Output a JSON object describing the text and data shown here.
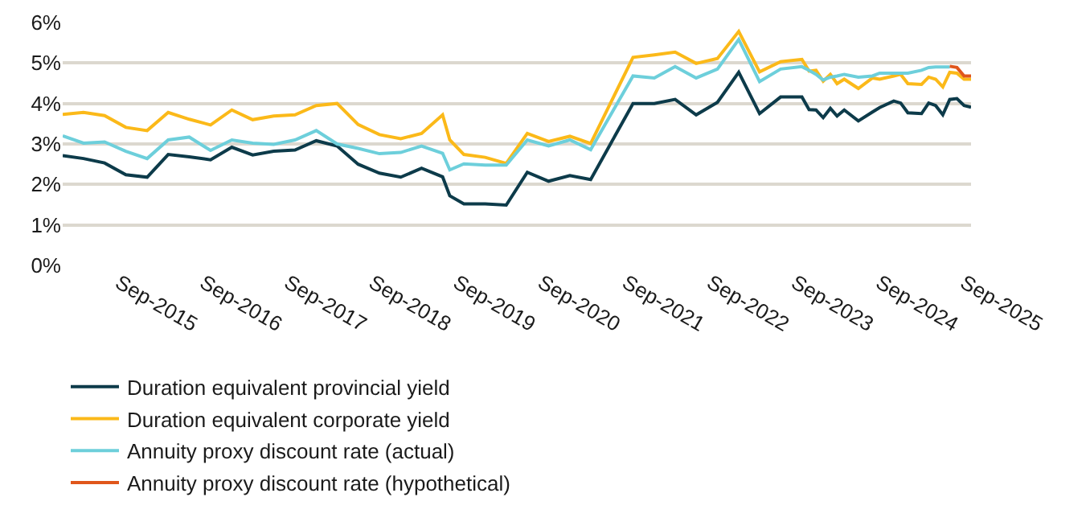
{
  "chart_data": {
    "type": "line",
    "x": [
      "2015-01",
      "2015-04",
      "2015-07",
      "2015-10",
      "2016-01",
      "2016-04",
      "2016-07",
      "2016-10",
      "2017-01",
      "2017-04",
      "2017-07",
      "2017-10",
      "2018-01",
      "2018-04",
      "2018-07",
      "2018-10",
      "2019-01",
      "2019-04",
      "2019-07",
      "2019-08",
      "2019-10",
      "2020-01",
      "2020-04",
      "2020-07",
      "2020-10",
      "2021-01",
      "2021-04",
      "2021-10",
      "2022-01",
      "2022-04",
      "2022-07",
      "2022-10",
      "2023-01",
      "2023-04",
      "2023-07",
      "2023-10",
      "2023-11",
      "2023-12",
      "2024-01",
      "2024-02",
      "2024-03",
      "2024-04",
      "2024-06",
      "2024-08",
      "2024-09",
      "2024-11",
      "2024-12",
      "2025-01",
      "2025-03",
      "2025-04",
      "2025-05",
      "2025-06",
      "2025-07",
      "2025-08",
      "2025-09",
      "2025-10"
    ],
    "series": [
      {
        "name": "Duration equivalent provincial yield",
        "color": "#0d3b4a",
        "values": [
          2.71,
          2.64,
          2.53,
          2.24,
          2.18,
          2.74,
          2.68,
          2.61,
          2.92,
          2.73,
          2.82,
          2.85,
          3.08,
          2.95,
          2.5,
          2.28,
          2.18,
          2.4,
          2.19,
          1.72,
          1.52,
          1.52,
          1.49,
          2.3,
          2.08,
          2.22,
          2.12,
          4.0,
          4.0,
          4.1,
          3.72,
          4.03,
          4.77,
          3.75,
          4.16,
          4.16,
          3.85,
          3.84,
          3.65,
          3.88,
          3.69,
          3.84,
          3.57,
          3.79,
          3.9,
          4.06,
          4.01,
          3.77,
          3.75,
          4.01,
          3.95,
          3.72,
          4.1,
          4.12,
          3.95,
          3.91
        ]
      },
      {
        "name": "Duration equivalent corporate yield",
        "color": "#fbb919",
        "values": [
          3.73,
          3.78,
          3.7,
          3.41,
          3.33,
          3.78,
          3.61,
          3.47,
          3.84,
          3.6,
          3.69,
          3.72,
          3.95,
          4.0,
          3.48,
          3.23,
          3.13,
          3.26,
          3.72,
          3.1,
          2.74,
          2.67,
          2.52,
          3.26,
          3.06,
          3.19,
          3.01,
          5.14,
          5.2,
          5.27,
          4.99,
          5.11,
          5.78,
          4.78,
          5.03,
          5.09,
          4.8,
          4.82,
          4.55,
          4.72,
          4.49,
          4.6,
          4.37,
          4.63,
          4.6,
          4.68,
          4.72,
          4.49,
          4.47,
          4.65,
          4.6,
          4.41,
          4.77,
          4.75,
          4.6,
          4.6
        ]
      },
      {
        "name": "Annuity proxy discount rate (actual)",
        "color": "#6dcfdb",
        "values": [
          3.2,
          3.02,
          3.05,
          2.82,
          2.64,
          3.1,
          3.17,
          2.84,
          3.1,
          3.02,
          2.99,
          3.1,
          3.33,
          3.0,
          2.89,
          2.76,
          2.79,
          2.95,
          2.77,
          2.36,
          2.51,
          2.48,
          2.48,
          3.1,
          2.95,
          3.1,
          2.86,
          4.68,
          4.63,
          4.91,
          4.63,
          4.85,
          5.58,
          4.54,
          4.85,
          4.91,
          4.82,
          4.72,
          4.58,
          4.65,
          4.68,
          4.72,
          4.65,
          4.68,
          4.75,
          4.75,
          4.75,
          4.75,
          4.82,
          4.89,
          4.9,
          4.9,
          4.9,
          null,
          null,
          null
        ]
      },
      {
        "name": "Annuity proxy discount rate (hypothetical)",
        "color": "#e0561b",
        "values": [
          null,
          null,
          null,
          null,
          null,
          null,
          null,
          null,
          null,
          null,
          null,
          null,
          null,
          null,
          null,
          null,
          null,
          null,
          null,
          null,
          null,
          null,
          null,
          null,
          null,
          null,
          null,
          null,
          null,
          null,
          null,
          null,
          null,
          null,
          null,
          null,
          null,
          null,
          null,
          null,
          null,
          null,
          null,
          null,
          null,
          null,
          null,
          null,
          null,
          null,
          null,
          null,
          4.92,
          4.89,
          4.68,
          4.68
        ]
      }
    ],
    "xlim": [
      "2015-01",
      "2025-10"
    ],
    "xticks": [
      {
        "value": "2015-09",
        "label": "Sep-2015"
      },
      {
        "value": "2016-09",
        "label": "Sep-2016"
      },
      {
        "value": "2017-09",
        "label": "Sep-2017"
      },
      {
        "value": "2018-09",
        "label": "Sep-2018"
      },
      {
        "value": "2019-09",
        "label": "Sep-2019"
      },
      {
        "value": "2020-09",
        "label": "Sep-2020"
      },
      {
        "value": "2021-09",
        "label": "Sep-2021"
      },
      {
        "value": "2022-09",
        "label": "Sep-2022"
      },
      {
        "value": "2023-09",
        "label": "Sep-2023"
      },
      {
        "value": "2024-09",
        "label": "Sep-2024"
      },
      {
        "value": "2025-09",
        "label": "Sep-2025"
      }
    ],
    "ylim": [
      0,
      6
    ],
    "yticks": [
      {
        "value": 0,
        "label": "0%"
      },
      {
        "value": 1,
        "label": "1%"
      },
      {
        "value": 2,
        "label": "2%"
      },
      {
        "value": 3,
        "label": "3%"
      },
      {
        "value": 4,
        "label": "4%"
      },
      {
        "value": 5,
        "label": "5%"
      },
      {
        "value": 6,
        "label": "6%"
      }
    ],
    "grid": "y",
    "legend": "bottom",
    "marker": "none",
    "line_style": "solid"
  }
}
